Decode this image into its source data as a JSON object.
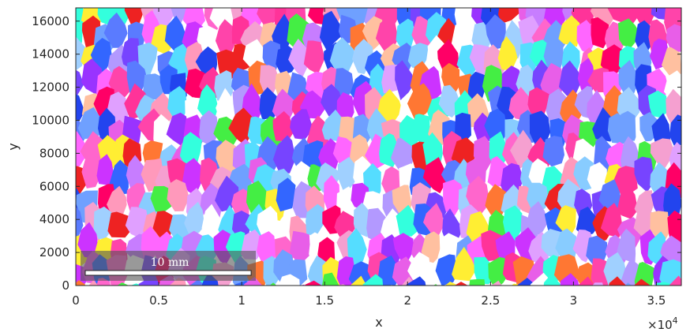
{
  "chart_data": {
    "type": "heatmap",
    "title": "",
    "xlabel": "x",
    "ylabel": "y",
    "xlim": [
      0,
      36500
    ],
    "ylim": [
      0,
      16800
    ],
    "x_ticks": [
      0,
      5000,
      10000,
      15000,
      20000,
      25000,
      30000,
      35000
    ],
    "x_tick_labels": [
      "0",
      "0.5",
      "1",
      "1.5",
      "2",
      "2.5",
      "3",
      "3.5"
    ],
    "x_exponent_label": "×10",
    "x_exponent_power": "4",
    "y_ticks": [
      0,
      2000,
      4000,
      6000,
      8000,
      10000,
      12000,
      14000,
      16000
    ],
    "y_tick_labels": [
      "0",
      "2000",
      "4000",
      "6000",
      "8000",
      "10000",
      "12000",
      "14000",
      "16000"
    ],
    "grid": false,
    "scale_bar": {
      "label": "10 mm",
      "length": 10000
    },
    "grain_colors": [
      "#e85ee8",
      "#ff66cc",
      "#9933ff",
      "#5a7bff",
      "#3366ff",
      "#ff3399",
      "#c77dff",
      "#f5a0d0",
      "#ff0066",
      "#cc33ff",
      "#6fa0ff",
      "#ff44aa",
      "#b399ff",
      "#ff66ff",
      "#2244ee",
      "#ee2222",
      "#ff7733",
      "#44ee44",
      "#ffee33",
      "#33ffdd",
      "#55ddff",
      "#a0d0ff",
      "#ffc0a0",
      "#e0a0ff",
      "#88ccff",
      "#ff99bb",
      "#7744ff",
      "#ffffff",
      "#ffffff"
    ]
  }
}
